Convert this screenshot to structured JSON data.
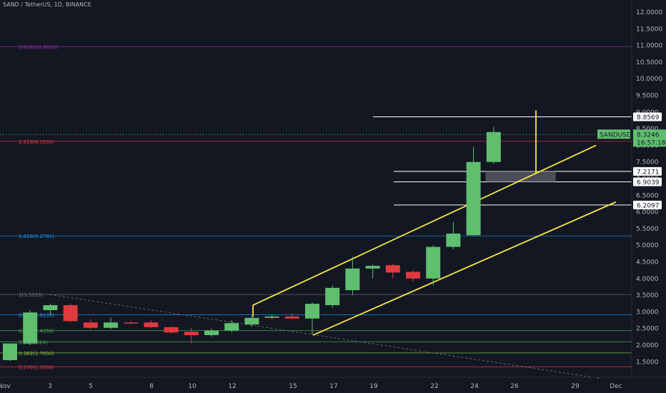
{
  "title": "SAND / TetherUS, 1D, BINANCE",
  "chart_data": {
    "type": "candlestick",
    "ylim": [
      1.0,
      12.2
    ],
    "y_ticks": [
      "12.0000",
      "11.5000",
      "11.0000",
      "10.5000",
      "10.0000",
      "9.5000",
      "9.0000",
      "8.5000",
      "8.0000",
      "7.5000",
      "7.0000",
      "6.5000",
      "6.0000",
      "5.5000",
      "5.0000",
      "4.5000",
      "4.0000",
      "3.5000",
      "3.0000",
      "2.5000",
      "2.0000",
      "1.5000"
    ],
    "x_labels": [
      "Nov",
      "3",
      "5",
      "8",
      "10",
      "12",
      "15",
      "17",
      "19",
      "22",
      "24",
      "26",
      "29",
      "Dec"
    ],
    "candles": [
      {
        "date": "Nov 1",
        "o": 1.55,
        "h": 2.05,
        "l": 1.52,
        "c": 2.05
      },
      {
        "date": "Nov 2",
        "o": 2.05,
        "h": 3.05,
        "l": 2.0,
        "c": 2.98
      },
      {
        "date": "Nov 3",
        "o": 3.05,
        "h": 3.25,
        "l": 2.9,
        "c": 3.2
      },
      {
        "date": "Nov 4",
        "o": 3.2,
        "h": 3.25,
        "l": 2.68,
        "c": 2.72
      },
      {
        "date": "Nov 5",
        "o": 2.68,
        "h": 2.78,
        "l": 2.48,
        "c": 2.52
      },
      {
        "date": "Nov 6",
        "o": 2.52,
        "h": 2.82,
        "l": 2.48,
        "c": 2.68
      },
      {
        "date": "Nov 7",
        "o": 2.68,
        "h": 2.72,
        "l": 2.62,
        "c": 2.66
      },
      {
        "date": "Nov 8",
        "o": 2.68,
        "h": 2.74,
        "l": 2.5,
        "c": 2.54
      },
      {
        "date": "Nov 9",
        "o": 2.54,
        "h": 2.56,
        "l": 2.34,
        "c": 2.38
      },
      {
        "date": "Nov 10",
        "o": 2.4,
        "h": 2.52,
        "l": 2.05,
        "c": 2.3
      },
      {
        "date": "Nov 11",
        "o": 2.3,
        "h": 2.5,
        "l": 2.25,
        "c": 2.44
      },
      {
        "date": "Nov 12",
        "o": 2.44,
        "h": 2.75,
        "l": 2.38,
        "c": 2.66
      },
      {
        "date": "Nov 13",
        "o": 2.62,
        "h": 2.88,
        "l": 2.55,
        "c": 2.82
      },
      {
        "date": "Nov 14",
        "o": 2.82,
        "h": 2.92,
        "l": 2.78,
        "c": 2.86
      },
      {
        "date": "Nov 15",
        "o": 2.86,
        "h": 2.96,
        "l": 2.78,
        "c": 2.8
      },
      {
        "date": "Nov 16",
        "o": 2.8,
        "h": 3.28,
        "l": 2.32,
        "c": 3.24
      },
      {
        "date": "Nov 17",
        "o": 3.2,
        "h": 3.8,
        "l": 3.12,
        "c": 3.72
      },
      {
        "date": "Nov 18",
        "o": 3.65,
        "h": 4.65,
        "l": 3.5,
        "c": 4.3
      },
      {
        "date": "Nov 19",
        "o": 4.3,
        "h": 4.42,
        "l": 4.0,
        "c": 4.38
      },
      {
        "date": "Nov 20",
        "o": 4.4,
        "h": 4.45,
        "l": 4.0,
        "c": 4.18
      },
      {
        "date": "Nov 21",
        "o": 4.2,
        "h": 4.25,
        "l": 3.92,
        "c": 4.0
      },
      {
        "date": "Nov 22",
        "o": 4.0,
        "h": 5.0,
        "l": 3.8,
        "c": 4.95
      },
      {
        "date": "Nov 23",
        "o": 4.95,
        "h": 5.7,
        "l": 4.88,
        "c": 5.35
      },
      {
        "date": "Nov 24",
        "o": 5.3,
        "h": 7.95,
        "l": 5.28,
        "c": 7.5
      },
      {
        "date": "Nov 25",
        "o": 7.5,
        "h": 8.55,
        "l": 7.45,
        "c": 8.4
      }
    ],
    "fib_levels": [
      {
        "label": "3.618(10.9628)",
        "value": 10.9628,
        "color": "#9c27b0"
      },
      {
        "label": "2.618(8.1205)",
        "value": 8.1205,
        "color": "#f23645"
      },
      {
        "label": "1.618(5.2781)",
        "value": 5.2781,
        "color": "#2196f3"
      },
      {
        "label": "1(3.5215)",
        "value": 3.5215,
        "color": "#787b86"
      },
      {
        "label": "0.786(2.9133)",
        "value": 2.9133,
        "color": "#2196f3"
      },
      {
        "label": "0.618(2.4358)",
        "value": 2.4358,
        "color": "#4caf50"
      },
      {
        "label": "0.5(2.1004)",
        "value": 2.1004,
        "color": "#4caf50"
      },
      {
        "label": "0.382(1.7650)",
        "value": 1.765,
        "color": "#8bc34a"
      },
      {
        "label": "0.236(1.3500)",
        "value": 1.35,
        "color": "#f23645"
      }
    ],
    "price_levels": [
      "8.8569",
      "7.2171",
      "6.9039",
      "6.2097"
    ],
    "current": {
      "symbol": "SANDUSDT",
      "price": "8.3246",
      "countdown": "16:57:18"
    }
  },
  "colors": {
    "bull": "#5fbf6f",
    "bear": "#e03a3e",
    "bg": "#131722",
    "channel": "#f5e642"
  }
}
